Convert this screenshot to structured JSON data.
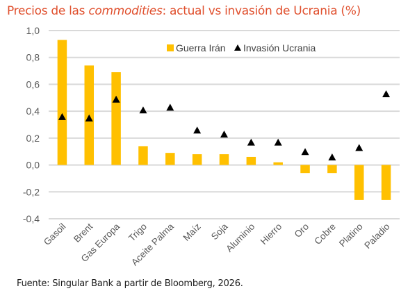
{
  "title": {
    "prefix": "Precios de las ",
    "italic": "commodities",
    "suffix": ": actual vs invasión de Ucrania (%)"
  },
  "footer": "Fuente: Singular Bank a partir de Bloomberg, 2026.",
  "colors": {
    "title": "#E0502E",
    "bars": "#FFC000",
    "markers": "#000000",
    "grid": "#D9D9D9",
    "axis_text": "#595959"
  },
  "chart_data": {
    "type": "bar",
    "title": "Precios de las commodities: actual vs invasión de Ucrania (%)",
    "xlabel": "",
    "ylabel": "",
    "ylim": [
      -0.4,
      1.0
    ],
    "yticks": [
      1.0,
      0.8,
      0.6,
      0.4,
      0.2,
      0.0,
      -0.2,
      -0.4
    ],
    "ytick_labels": [
      "1,0",
      "0,8",
      "0,6",
      "0,4",
      "0,2",
      "0,0",
      "-0,2",
      "-0,4"
    ],
    "grid": true,
    "legend_position": "top-center",
    "categories": [
      "Gasoil",
      "Brent",
      "Gas Europa",
      "Trigo",
      "Aceite Palma",
      "Maíz",
      "Soja",
      "Aluminio",
      "Hierro",
      "Oro",
      "Cobre",
      "Platino",
      "Paladio"
    ],
    "series": [
      {
        "name": "Guerra Irán",
        "type": "bar",
        "marker": "square",
        "values": [
          0.93,
          0.74,
          0.69,
          0.14,
          0.09,
          0.08,
          0.08,
          0.06,
          0.02,
          -0.06,
          -0.06,
          -0.26,
          -0.26
        ]
      },
      {
        "name": "Invasión Ucrania",
        "type": "scatter",
        "marker": "triangle",
        "values": [
          0.36,
          0.35,
          0.49,
          0.41,
          0.43,
          0.26,
          0.23,
          0.17,
          0.17,
          0.1,
          0.06,
          0.13,
          0.53
        ]
      }
    ]
  }
}
